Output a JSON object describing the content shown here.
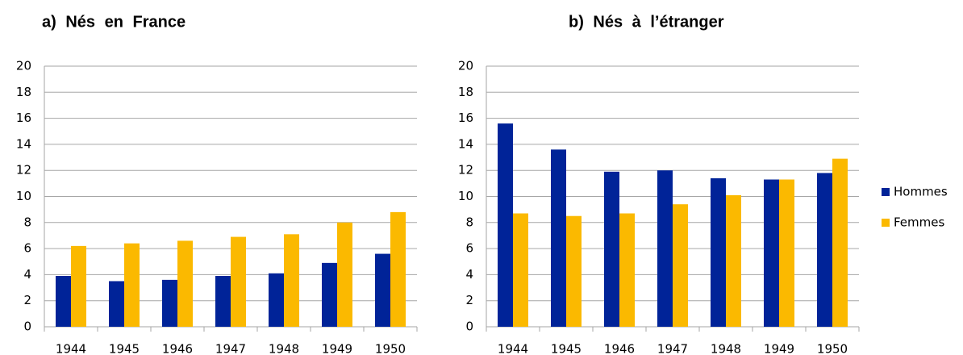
{
  "chart_data": [
    {
      "type": "bar",
      "title": "a) Nés en France",
      "categories": [
        "1944",
        "1945",
        "1946",
        "1947",
        "1948",
        "1949",
        "1950"
      ],
      "series": [
        {
          "color": "#002398",
          "values": [
            3.9,
            3.5,
            3.6,
            3.9,
            4.1,
            4.9,
            5.6
          ]
        },
        {
          "color": "#fbb900",
          "values": [
            6.2,
            6.4,
            6.6,
            6.9,
            7.1,
            8.0,
            8.8
          ]
        }
      ],
      "ylim": [
        0,
        20
      ],
      "yticks": [
        0,
        2,
        4,
        6,
        8,
        10,
        12,
        14,
        16,
        18,
        20
      ],
      "grid": true
    },
    {
      "type": "bar",
      "title": "b) Nés à l’étranger",
      "categories": [
        "1944",
        "1945",
        "1946",
        "1947",
        "1948",
        "1949",
        "1950"
      ],
      "series": [
        {
          "name": "Hommes",
          "color": "#002398",
          "values": [
            15.6,
            13.6,
            11.9,
            12.0,
            11.4,
            11.3,
            11.8
          ]
        },
        {
          "name": "Femmes",
          "color": "#fbb900",
          "values": [
            8.7,
            8.5,
            8.7,
            9.4,
            10.1,
            11.3,
            12.9
          ]
        }
      ],
      "ylim": [
        0,
        20
      ],
      "yticks": [
        0,
        2,
        4,
        6,
        8,
        10,
        12,
        14,
        16,
        18,
        20
      ],
      "grid": true,
      "legend": "right"
    }
  ]
}
